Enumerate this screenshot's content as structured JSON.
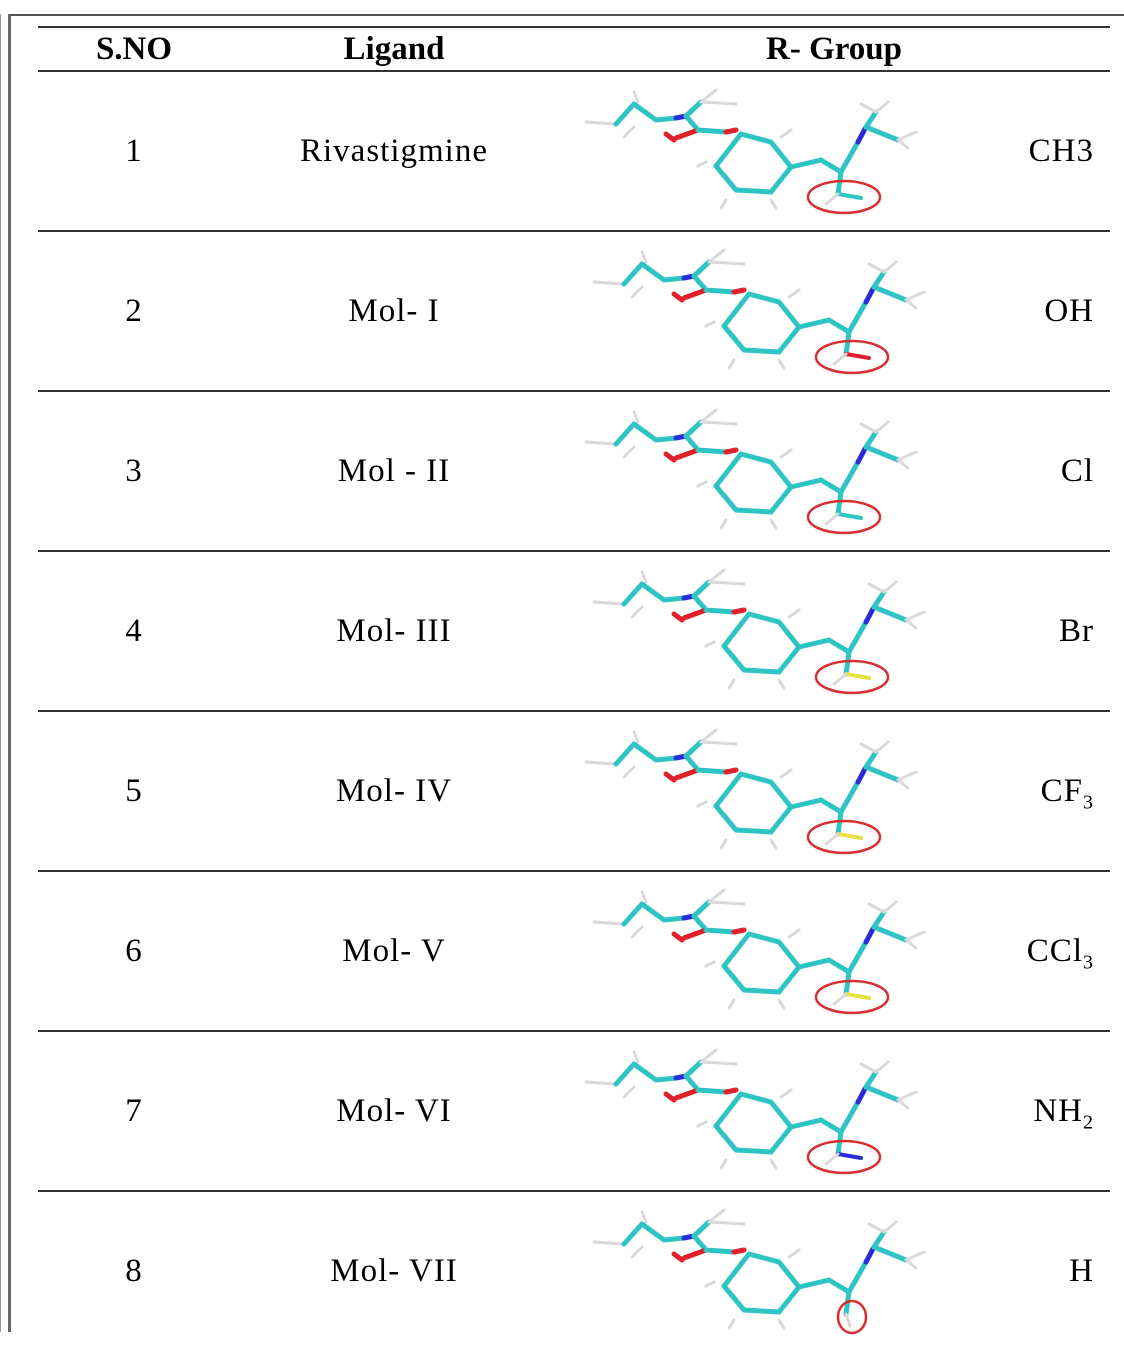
{
  "table": {
    "headers": {
      "sno": "S.NO",
      "ligand": "Ligand",
      "rgroup": "R- Group"
    },
    "rows": [
      {
        "sno": "1",
        "ligand": "Rivastigmine",
        "r_main": "CH3",
        "r_sub": "",
        "highlight": "methyl"
      },
      {
        "sno": "2",
        "ligand": "Mol- I",
        "r_main": "OH",
        "r_sub": "",
        "highlight": "hydroxyl"
      },
      {
        "sno": "3",
        "ligand": "Mol - II",
        "r_main": "Cl",
        "r_sub": "",
        "highlight": "chloro"
      },
      {
        "sno": "4",
        "ligand": "Mol- III",
        "r_main": "Br",
        "r_sub": "",
        "highlight": "bromo"
      },
      {
        "sno": "5",
        "ligand": "Mol- IV",
        "r_main": "CF",
        "r_sub": "3",
        "highlight": "trifluoromethyl"
      },
      {
        "sno": "6",
        "ligand": "Mol- V",
        "r_main": "CCl",
        "r_sub": "3",
        "highlight": "trichloromethyl"
      },
      {
        "sno": "7",
        "ligand": "Mol- VI",
        "r_main": "NH",
        "r_sub": "2",
        "highlight": "amino"
      },
      {
        "sno": "8",
        "ligand": "Mol- VII",
        "r_main": "H",
        "r_sub": "",
        "highlight": "hydrogen"
      }
    ]
  },
  "colors": {
    "carbon": "#2fc4c4",
    "hydrogen": "#d9d9d9",
    "oxygen": "#e0202a",
    "nitrogen": "#2a2ad8",
    "halogen": "#e8e040",
    "circle": "#d83030"
  }
}
